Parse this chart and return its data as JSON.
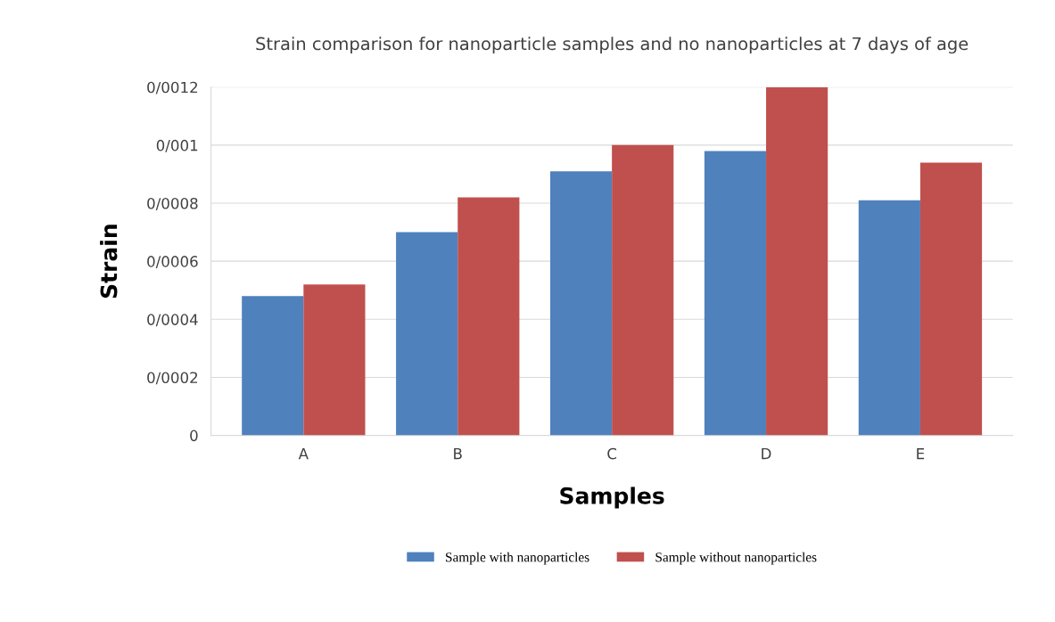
{
  "chart_data": {
    "type": "bar",
    "title": "Strain comparison for nanoparticle samples and no nanoparticles at 7 days of age",
    "xlabel": "Samples",
    "ylabel": "Strain",
    "categories": [
      "A",
      "B",
      "C",
      "D",
      "E"
    ],
    "series": [
      {
        "name": "Sample with nanoparticles",
        "color": "#4f81bd",
        "values": [
          0.00048,
          0.0007,
          0.00091,
          0.00098,
          0.00081
        ]
      },
      {
        "name": "Sample without nanoparticles",
        "color": "#c0504d",
        "values": [
          0.00052,
          0.00082,
          0.001,
          0.0012,
          0.00094
        ]
      }
    ],
    "ylim": [
      0,
      0.0012
    ],
    "yticks": [
      0,
      {
        "value": 0.0002,
        "label": "0/0002"
      },
      {
        "value": 0.0004,
        "label": "0/0004"
      },
      {
        "value": 0.0006,
        "label": "0/0006"
      },
      {
        "value": 0.0008,
        "label": "0/0008"
      },
      {
        "value": 0.001,
        "label": "0/001"
      },
      {
        "value": 0.0012,
        "label": "0/0012"
      }
    ],
    "grid": "y",
    "legend": "bottom"
  }
}
